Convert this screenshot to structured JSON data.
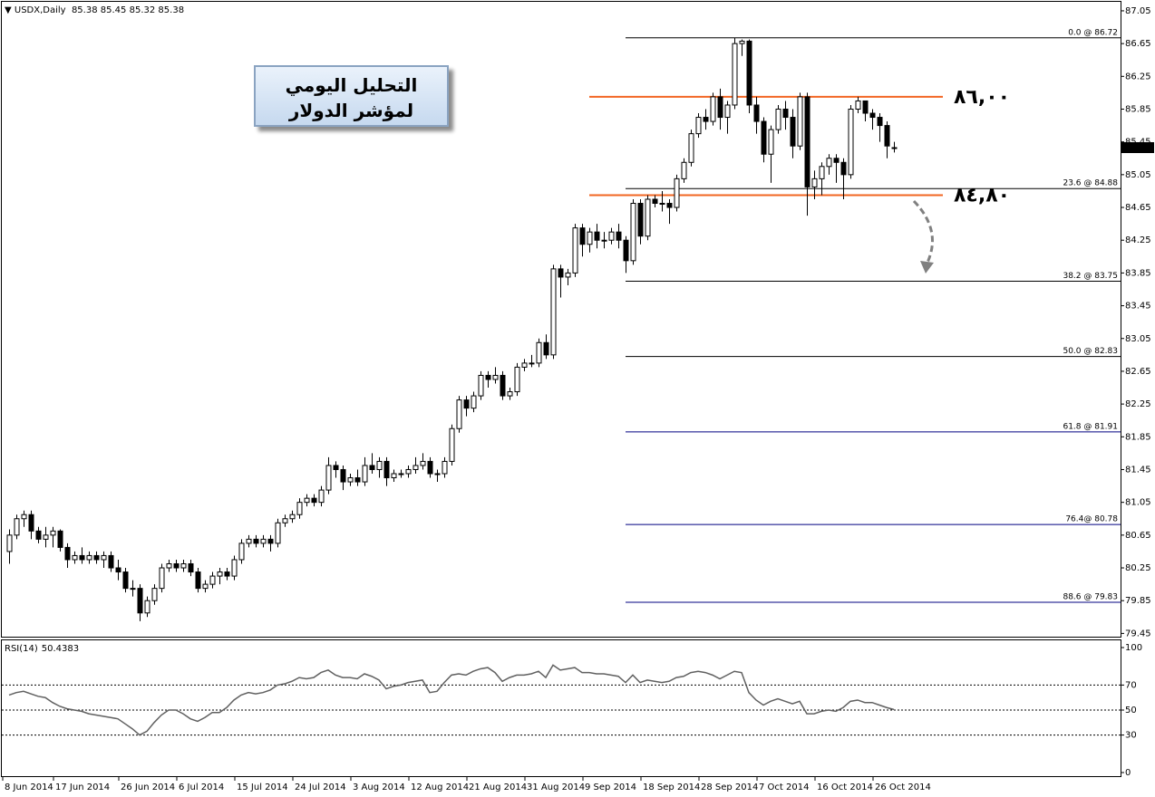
{
  "chart_data": {
    "type": "candlestick",
    "title": "USDX,Daily",
    "categories": [
      "8 Jun 2014",
      null,
      null,
      null,
      null,
      null,
      null,
      "17 Jun 2014",
      null,
      null,
      null,
      null,
      null,
      null,
      null,
      null,
      "26 Jun 2014",
      null,
      null,
      null,
      null,
      null,
      null,
      null,
      "6 Jul 2014",
      null,
      null,
      null,
      null,
      null,
      null,
      null,
      "15 Jul 2014",
      null,
      null,
      null,
      null,
      null,
      null,
      null,
      "24 Jul 2014",
      null,
      null,
      null,
      null,
      null,
      null,
      null,
      "3 Aug 2014",
      null,
      null,
      null,
      null,
      null,
      null,
      null,
      "12 Aug 2014",
      null,
      null,
      null,
      null,
      null,
      null,
      null,
      "21 Aug 2014",
      null,
      null,
      null,
      null,
      null,
      null,
      null,
      "31 Aug 2014",
      null,
      null,
      null,
      null,
      null,
      null,
      null,
      "9 Sep 2014",
      null,
      null,
      null,
      null,
      null,
      null,
      null,
      "18 Sep 2014",
      null,
      null,
      null,
      null,
      null,
      null,
      null,
      "28 Sep 2014",
      null,
      null,
      null,
      null,
      null,
      null,
      null,
      "7 Oct 2014",
      null,
      null,
      null,
      null,
      null,
      null,
      null,
      "16 Oct 2014",
      null,
      null,
      null,
      null,
      null,
      null,
      null,
      "26 Oct 2014",
      null,
      null
    ],
    "ohlc": [
      [
        80.45,
        80.72,
        80.3,
        80.65
      ],
      [
        80.65,
        80.9,
        80.6,
        80.85
      ],
      [
        80.85,
        80.95,
        80.75,
        80.9
      ],
      [
        80.9,
        80.95,
        80.6,
        80.7
      ],
      [
        80.7,
        80.75,
        80.55,
        80.6
      ],
      [
        80.6,
        80.75,
        80.5,
        80.65
      ],
      [
        80.65,
        80.75,
        80.5,
        80.7
      ],
      [
        80.7,
        80.72,
        80.45,
        80.5
      ],
      [
        80.5,
        80.55,
        80.25,
        80.35
      ],
      [
        80.35,
        80.45,
        80.3,
        80.4
      ],
      [
        80.4,
        80.5,
        80.3,
        80.35
      ],
      [
        80.35,
        80.45,
        80.3,
        80.4
      ],
      [
        80.4,
        80.45,
        80.3,
        80.35
      ],
      [
        80.35,
        80.45,
        80.25,
        80.4
      ],
      [
        80.4,
        80.45,
        80.2,
        80.25
      ],
      [
        80.25,
        80.35,
        80.1,
        80.2
      ],
      [
        80.2,
        80.25,
        79.95,
        80.0
      ],
      [
        80.0,
        80.1,
        79.9,
        80.0
      ],
      [
        80.0,
        80.05,
        79.6,
        79.7
      ],
      [
        79.7,
        79.9,
        79.65,
        79.85
      ],
      [
        79.85,
        80.05,
        79.8,
        80.0
      ],
      [
        80.0,
        80.3,
        79.95,
        80.25
      ],
      [
        80.25,
        80.35,
        80.2,
        80.3
      ],
      [
        80.3,
        80.35,
        80.2,
        80.25
      ],
      [
        80.25,
        80.35,
        80.2,
        80.3
      ],
      [
        80.3,
        80.35,
        80.15,
        80.2
      ],
      [
        80.2,
        80.25,
        79.95,
        80.0
      ],
      [
        80.0,
        80.1,
        79.95,
        80.05
      ],
      [
        80.05,
        80.2,
        80.0,
        80.15
      ],
      [
        80.15,
        80.25,
        80.05,
        80.2
      ],
      [
        80.2,
        80.25,
        80.1,
        80.15
      ],
      [
        80.15,
        80.4,
        80.1,
        80.35
      ],
      [
        80.35,
        80.6,
        80.3,
        80.55
      ],
      [
        80.55,
        80.65,
        80.5,
        80.6
      ],
      [
        80.6,
        80.65,
        80.5,
        80.55
      ],
      [
        80.55,
        80.65,
        80.5,
        80.6
      ],
      [
        80.6,
        80.65,
        80.45,
        80.55
      ],
      [
        80.55,
        80.85,
        80.5,
        80.8
      ],
      [
        80.8,
        80.9,
        80.75,
        80.85
      ],
      [
        80.85,
        80.95,
        80.8,
        80.9
      ],
      [
        80.9,
        81.1,
        80.85,
        81.05
      ],
      [
        81.05,
        81.15,
        81.0,
        81.1
      ],
      [
        81.1,
        81.15,
        81.0,
        81.05
      ],
      [
        81.05,
        81.25,
        81.0,
        81.2
      ],
      [
        81.2,
        81.6,
        81.15,
        81.5
      ],
      [
        81.5,
        81.55,
        81.35,
        81.45
      ],
      [
        81.45,
        81.5,
        81.2,
        81.3
      ],
      [
        81.3,
        81.4,
        81.25,
        81.35
      ],
      [
        81.35,
        81.45,
        81.25,
        81.3
      ],
      [
        81.3,
        81.6,
        81.25,
        81.5
      ],
      [
        81.5,
        81.65,
        81.4,
        81.45
      ],
      [
        81.45,
        81.6,
        81.35,
        81.55
      ],
      [
        81.55,
        81.6,
        81.25,
        81.35
      ],
      [
        81.35,
        81.45,
        81.3,
        81.4
      ],
      [
        81.4,
        81.45,
        81.35,
        81.4
      ],
      [
        81.4,
        81.5,
        81.35,
        81.45
      ],
      [
        81.45,
        81.6,
        81.4,
        81.5
      ],
      [
        81.5,
        81.65,
        81.45,
        81.55
      ],
      [
        81.55,
        81.6,
        81.35,
        81.4
      ],
      [
        81.4,
        81.45,
        81.3,
        81.4
      ],
      [
        81.4,
        81.6,
        81.35,
        81.55
      ],
      [
        81.55,
        82.0,
        81.5,
        81.95
      ],
      [
        81.95,
        82.35,
        81.9,
        82.3
      ],
      [
        82.3,
        82.35,
        82.1,
        82.2
      ],
      [
        82.2,
        82.4,
        82.15,
        82.35
      ],
      [
        82.35,
        82.65,
        82.3,
        82.6
      ],
      [
        82.6,
        82.65,
        82.45,
        82.55
      ],
      [
        82.55,
        82.7,
        82.5,
        82.6
      ],
      [
        82.6,
        82.65,
        82.3,
        82.35
      ],
      [
        82.35,
        82.45,
        82.3,
        82.4
      ],
      [
        82.4,
        82.75,
        82.35,
        82.7
      ],
      [
        82.7,
        82.8,
        82.65,
        82.75
      ],
      [
        82.75,
        82.85,
        82.7,
        82.75
      ],
      [
        82.75,
        83.05,
        82.7,
        83.0
      ],
      [
        83.0,
        83.1,
        82.8,
        82.85
      ],
      [
        82.85,
        83.95,
        82.8,
        83.9
      ],
      [
        83.9,
        83.95,
        83.55,
        83.8
      ],
      [
        83.8,
        83.9,
        83.7,
        83.85
      ],
      [
        83.85,
        84.45,
        83.8,
        84.4
      ],
      [
        84.4,
        84.45,
        84.05,
        84.2
      ],
      [
        84.2,
        84.4,
        84.1,
        84.35
      ],
      [
        84.35,
        84.45,
        84.15,
        84.25
      ],
      [
        84.25,
        84.35,
        84.15,
        84.25
      ],
      [
        84.25,
        84.4,
        84.2,
        84.35
      ],
      [
        84.35,
        84.45,
        84.15,
        84.25
      ],
      [
        84.25,
        84.3,
        83.85,
        84.0
      ],
      [
        84.0,
        84.75,
        83.95,
        84.7
      ],
      [
        84.7,
        84.75,
        84.2,
        84.3
      ],
      [
        84.3,
        84.8,
        84.25,
        84.75
      ],
      [
        84.75,
        84.8,
        84.65,
        84.7
      ],
      [
        84.7,
        84.85,
        84.6,
        84.7
      ],
      [
        84.7,
        84.75,
        84.45,
        84.65
      ],
      [
        84.65,
        85.05,
        84.6,
        85.0
      ],
      [
        85.0,
        85.25,
        84.95,
        85.2
      ],
      [
        85.2,
        85.6,
        85.15,
        85.55
      ],
      [
        85.55,
        85.8,
        85.5,
        85.75
      ],
      [
        85.75,
        85.85,
        85.6,
        85.7
      ],
      [
        85.7,
        86.05,
        85.65,
        86.0
      ],
      [
        86.0,
        86.1,
        85.6,
        85.75
      ],
      [
        85.75,
        85.95,
        85.55,
        85.9
      ],
      [
        85.9,
        86.72,
        85.85,
        86.65
      ],
      [
        86.65,
        86.7,
        86.5,
        86.68
      ],
      [
        86.68,
        86.7,
        85.8,
        85.9
      ],
      [
        85.9,
        86.0,
        85.55,
        85.7
      ],
      [
        85.7,
        85.75,
        85.2,
        85.3
      ],
      [
        85.3,
        85.65,
        84.95,
        85.6
      ],
      [
        85.6,
        85.9,
        85.55,
        85.85
      ],
      [
        85.85,
        85.95,
        85.6,
        85.75
      ],
      [
        85.75,
        85.85,
        85.25,
        85.4
      ],
      [
        85.4,
        86.05,
        85.35,
        86.0
      ],
      [
        86.0,
        86.05,
        84.55,
        84.9
      ],
      [
        84.9,
        85.1,
        84.75,
        85.0
      ],
      [
        85.0,
        85.2,
        84.8,
        85.15
      ],
      [
        85.15,
        85.3,
        85.05,
        85.25
      ],
      [
        85.25,
        85.3,
        84.95,
        85.2
      ],
      [
        85.2,
        85.25,
        84.75,
        85.05
      ],
      [
        85.05,
        85.9,
        85.0,
        85.85
      ],
      [
        85.85,
        86.0,
        85.8,
        85.95
      ],
      [
        85.95,
        85.95,
        85.7,
        85.8
      ],
      [
        85.8,
        85.85,
        85.6,
        85.75
      ],
      [
        85.75,
        85.8,
        85.45,
        85.65
      ],
      [
        85.65,
        85.7,
        85.25,
        85.4
      ],
      [
        85.38,
        85.45,
        85.32,
        85.38
      ]
    ],
    "ylim": [
      79.41,
      87.16
    ],
    "yticks": [
      87.05,
      86.65,
      86.25,
      85.85,
      85.45,
      85.05,
      84.65,
      84.25,
      83.85,
      83.45,
      83.05,
      82.65,
      82.25,
      81.85,
      81.45,
      81.05,
      80.65,
      80.25,
      79.85,
      79.45
    ],
    "grid": false,
    "bull_color": "#ffffff",
    "bear_color": "#000000",
    "fib_levels": [
      {
        "label": "0.0 @ 86.72",
        "value": 86.72,
        "color": "#000000"
      },
      {
        "label": "23.6 @ 84.88",
        "value": 84.88,
        "color": "#000000"
      },
      {
        "label": "38.2 @ 83.75",
        "value": 83.75,
        "color": "#000000"
      },
      {
        "label": "50.0 @ 82.83",
        "value": 82.83,
        "color": "#000000"
      },
      {
        "label": "61.8 @ 81.91",
        "value": 81.91,
        "color": "#000080"
      },
      {
        "label": "76.4@ 80.78",
        "value": 80.78,
        "color": "#000080"
      },
      {
        "label": "88.6 @ 79.83",
        "value": 79.83,
        "color": "#000080"
      }
    ],
    "levels": [
      {
        "label": "٨٦,٠٠",
        "value": 86,
        "color": "#f26522"
      },
      {
        "label": "٨٤,٨٠",
        "value": 84.8,
        "color": "#f26522"
      }
    ],
    "annotation": [
      "التحليل اليومي",
      "لمؤشر الدولار"
    ],
    "rsi": {
      "name": "RSI(14)",
      "values": [
        62,
        64,
        65,
        63,
        61,
        60,
        56,
        53,
        51,
        50,
        49,
        47,
        46,
        45,
        44,
        43,
        39,
        35,
        30,
        33,
        40,
        46,
        50,
        50,
        47,
        43,
        41,
        44,
        48,
        48,
        52,
        58,
        62,
        64,
        63,
        64,
        66,
        70,
        71,
        73,
        76,
        75,
        76,
        80,
        82,
        78,
        76,
        76,
        75,
        79,
        77,
        74,
        67,
        69,
        70,
        72,
        73,
        74,
        64,
        65,
        72,
        78,
        79,
        78,
        81,
        83,
        84,
        80,
        73,
        76,
        78,
        78,
        79,
        81,
        76,
        86,
        82,
        83,
        84,
        80,
        80,
        79,
        79,
        78,
        77,
        72,
        78,
        72,
        74,
        73,
        72,
        73,
        76,
        77,
        80,
        81,
        80,
        78,
        75,
        78,
        81,
        80,
        64,
        58,
        54,
        57,
        59,
        57,
        55,
        57,
        47,
        47,
        49,
        50,
        49,
        52,
        57,
        58,
        56,
        56,
        54,
        52,
        50.4383
      ],
      "ylim": [
        -2.9,
        105.8
      ],
      "yticks": [
        100,
        70,
        50,
        30,
        0
      ],
      "dotted_levels": [
        70,
        50,
        30
      ],
      "color": "#606060"
    }
  }
}
